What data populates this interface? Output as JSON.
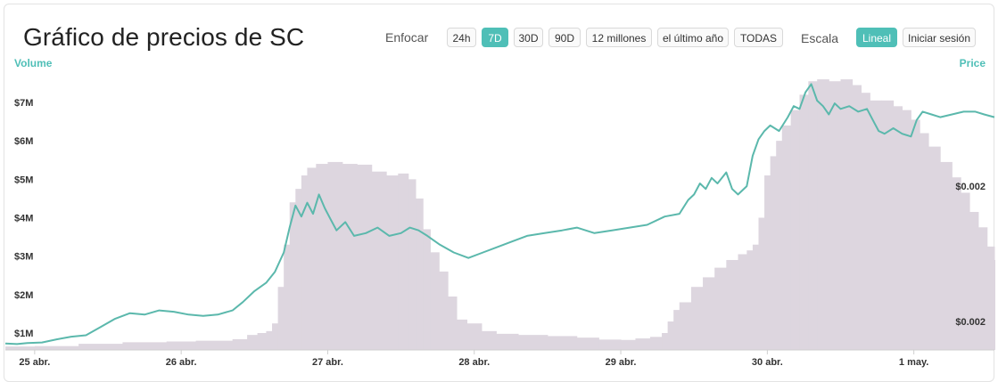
{
  "header": {
    "title": "Gráfico de precios de SC",
    "zoom_label": "Enfocar",
    "scale_label": "Escala"
  },
  "zoom_buttons": [
    {
      "label": "24h",
      "active": false
    },
    {
      "label": "7D",
      "active": true
    },
    {
      "label": "30D",
      "active": false
    },
    {
      "label": "90D",
      "active": false
    },
    {
      "label": "12 millones",
      "active": false
    },
    {
      "label": "el último año",
      "active": false
    },
    {
      "label": "TODAS",
      "active": false
    }
  ],
  "scale_buttons": [
    {
      "label": "Lineal",
      "active": true
    },
    {
      "label": "Iniciar sesión",
      "active": false
    }
  ],
  "colors": {
    "accent": "#4fbfb7",
    "price_line": "#5bb8ac",
    "volume_fill": "#ddd6df"
  },
  "chart_data": {
    "type": "line",
    "left_axis_title": "Volume",
    "right_axis_title": "Price",
    "volume_ticks": [
      "$1M",
      "$2M",
      "$3M",
      "$4M",
      "$5M",
      "$6M",
      "$7M"
    ],
    "price_ticks": [
      "$0.002",
      "$0.002"
    ],
    "x_ticks": [
      "25 abr.",
      "26 abr.",
      "27 abr.",
      "28 abr.",
      "29 abr.",
      "30 abr.",
      "1 may."
    ],
    "x_range_days": [
      24.8,
      31.55
    ],
    "volume_ylim": [
      0.6,
      7.8
    ],
    "price_ylim": [
      0.0,
      1.0
    ],
    "grid": false,
    "volume_series": [
      [
        24.8,
        0.65
      ],
      [
        25.0,
        0.66
      ],
      [
        25.3,
        0.72
      ],
      [
        25.6,
        0.76
      ],
      [
        25.9,
        0.78
      ],
      [
        26.1,
        0.8
      ],
      [
        26.35,
        0.84
      ],
      [
        26.45,
        0.95
      ],
      [
        26.52,
        1.0
      ],
      [
        26.58,
        1.05
      ],
      [
        26.62,
        1.25
      ],
      [
        26.66,
        2.2
      ],
      [
        26.7,
        3.3
      ],
      [
        26.74,
        4.4
      ],
      [
        26.78,
        4.75
      ],
      [
        26.82,
        5.1
      ],
      [
        26.86,
        5.3
      ],
      [
        26.92,
        5.4
      ],
      [
        27.0,
        5.45
      ],
      [
        27.1,
        5.4
      ],
      [
        27.2,
        5.38
      ],
      [
        27.3,
        5.2
      ],
      [
        27.4,
        5.1
      ],
      [
        27.48,
        5.15
      ],
      [
        27.55,
        5.0
      ],
      [
        27.6,
        4.5
      ],
      [
        27.65,
        3.7
      ],
      [
        27.7,
        3.1
      ],
      [
        27.76,
        2.6
      ],
      [
        27.82,
        1.95
      ],
      [
        27.88,
        1.35
      ],
      [
        27.95,
        1.25
      ],
      [
        28.05,
        1.05
      ],
      [
        28.15,
        0.98
      ],
      [
        28.3,
        0.95
      ],
      [
        28.5,
        0.92
      ],
      [
        28.7,
        0.88
      ],
      [
        28.85,
        0.83
      ],
      [
        29.0,
        0.82
      ],
      [
        29.1,
        0.86
      ],
      [
        29.2,
        0.9
      ],
      [
        29.28,
        1.0
      ],
      [
        29.32,
        1.3
      ],
      [
        29.36,
        1.6
      ],
      [
        29.4,
        1.8
      ],
      [
        29.48,
        2.2
      ],
      [
        29.56,
        2.45
      ],
      [
        29.64,
        2.7
      ],
      [
        29.72,
        2.9
      ],
      [
        29.8,
        3.05
      ],
      [
        29.86,
        3.15
      ],
      [
        29.9,
        3.3
      ],
      [
        29.94,
        4.0
      ],
      [
        29.98,
        5.1
      ],
      [
        30.02,
        5.6
      ],
      [
        30.06,
        6.0
      ],
      [
        30.1,
        6.4
      ],
      [
        30.16,
        6.8
      ],
      [
        30.22,
        7.2
      ],
      [
        30.28,
        7.55
      ],
      [
        30.34,
        7.6
      ],
      [
        30.42,
        7.55
      ],
      [
        30.5,
        7.6
      ],
      [
        30.58,
        7.45
      ],
      [
        30.64,
        7.25
      ],
      [
        30.7,
        7.05
      ],
      [
        30.78,
        7.05
      ],
      [
        30.86,
        6.9
      ],
      [
        30.92,
        6.8
      ],
      [
        30.98,
        6.55
      ],
      [
        31.04,
        6.2
      ],
      [
        31.1,
        5.85
      ],
      [
        31.18,
        5.45
      ],
      [
        31.26,
        5.05
      ],
      [
        31.32,
        4.65
      ],
      [
        31.38,
        4.15
      ],
      [
        31.44,
        3.75
      ],
      [
        31.5,
        3.25
      ],
      [
        31.55,
        2.9
      ]
    ],
    "price_series": [
      [
        24.8,
        0.02
      ],
      [
        24.88,
        0.018
      ],
      [
        24.95,
        0.022
      ],
      [
        25.05,
        0.024
      ],
      [
        25.15,
        0.035
      ],
      [
        25.25,
        0.045
      ],
      [
        25.35,
        0.05
      ],
      [
        25.45,
        0.08
      ],
      [
        25.55,
        0.11
      ],
      [
        25.65,
        0.13
      ],
      [
        25.75,
        0.125
      ],
      [
        25.85,
        0.14
      ],
      [
        25.95,
        0.135
      ],
      [
        26.05,
        0.125
      ],
      [
        26.15,
        0.12
      ],
      [
        26.25,
        0.125
      ],
      [
        26.35,
        0.14
      ],
      [
        26.42,
        0.17
      ],
      [
        26.5,
        0.21
      ],
      [
        26.58,
        0.24
      ],
      [
        26.64,
        0.28
      ],
      [
        26.7,
        0.35
      ],
      [
        26.74,
        0.44
      ],
      [
        26.78,
        0.52
      ],
      [
        26.82,
        0.48
      ],
      [
        26.86,
        0.53
      ],
      [
        26.9,
        0.49
      ],
      [
        26.94,
        0.56
      ],
      [
        26.98,
        0.51
      ],
      [
        27.02,
        0.47
      ],
      [
        27.06,
        0.43
      ],
      [
        27.12,
        0.46
      ],
      [
        27.18,
        0.41
      ],
      [
        27.26,
        0.42
      ],
      [
        27.34,
        0.44
      ],
      [
        27.42,
        0.41
      ],
      [
        27.5,
        0.42
      ],
      [
        27.56,
        0.44
      ],
      [
        27.62,
        0.43
      ],
      [
        27.68,
        0.41
      ],
      [
        27.76,
        0.38
      ],
      [
        27.86,
        0.35
      ],
      [
        27.96,
        0.33
      ],
      [
        28.06,
        0.35
      ],
      [
        28.16,
        0.37
      ],
      [
        28.26,
        0.39
      ],
      [
        28.36,
        0.41
      ],
      [
        28.48,
        0.42
      ],
      [
        28.6,
        0.43
      ],
      [
        28.7,
        0.44
      ],
      [
        28.82,
        0.42
      ],
      [
        28.94,
        0.43
      ],
      [
        29.06,
        0.44
      ],
      [
        29.18,
        0.45
      ],
      [
        29.3,
        0.48
      ],
      [
        29.4,
        0.49
      ],
      [
        29.46,
        0.54
      ],
      [
        29.5,
        0.56
      ],
      [
        29.54,
        0.6
      ],
      [
        29.58,
        0.58
      ],
      [
        29.62,
        0.62
      ],
      [
        29.66,
        0.6
      ],
      [
        29.72,
        0.64
      ],
      [
        29.76,
        0.58
      ],
      [
        29.8,
        0.56
      ],
      [
        29.86,
        0.59
      ],
      [
        29.9,
        0.7
      ],
      [
        29.94,
        0.76
      ],
      [
        29.98,
        0.79
      ],
      [
        30.02,
        0.81
      ],
      [
        30.08,
        0.79
      ],
      [
        30.14,
        0.84
      ],
      [
        30.18,
        0.88
      ],
      [
        30.22,
        0.87
      ],
      [
        30.26,
        0.93
      ],
      [
        30.3,
        0.96
      ],
      [
        30.34,
        0.9
      ],
      [
        30.38,
        0.88
      ],
      [
        30.42,
        0.85
      ],
      [
        30.46,
        0.89
      ],
      [
        30.5,
        0.87
      ],
      [
        30.56,
        0.88
      ],
      [
        30.62,
        0.86
      ],
      [
        30.68,
        0.87
      ],
      [
        30.72,
        0.83
      ],
      [
        30.76,
        0.79
      ],
      [
        30.8,
        0.78
      ],
      [
        30.86,
        0.8
      ],
      [
        30.92,
        0.78
      ],
      [
        30.98,
        0.77
      ],
      [
        31.02,
        0.83
      ],
      [
        31.06,
        0.86
      ],
      [
        31.12,
        0.85
      ],
      [
        31.18,
        0.84
      ],
      [
        31.26,
        0.85
      ],
      [
        31.34,
        0.86
      ],
      [
        31.42,
        0.86
      ],
      [
        31.48,
        0.85
      ],
      [
        31.55,
        0.84
      ]
    ]
  }
}
